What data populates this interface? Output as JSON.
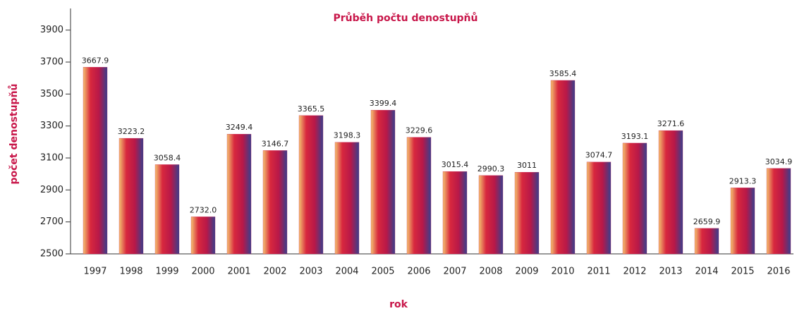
{
  "chart_data": {
    "type": "bar",
    "title": "Průběh počtu denostupňů",
    "x_label": "rok",
    "y_label": "počet denostupňů",
    "categories": [
      "1997",
      "1998",
      "1999",
      "2000",
      "2001",
      "2002",
      "2003",
      "2004",
      "2005",
      "2006",
      "2007",
      "2008",
      "2009",
      "2010",
      "2011",
      "2012",
      "2013",
      "2014",
      "2015",
      "2016"
    ],
    "values": [
      3667.9,
      3223.2,
      3058.4,
      2732,
      3249.4,
      3146.7,
      3365.5,
      3198.3,
      3399.4,
      3229.6,
      3015.4,
      2990.3,
      3011,
      3585.4,
      3074.7,
      3193.1,
      3271.6,
      2659.9,
      2913.3,
      3034.9
    ],
    "value_labels": [
      "3667.9",
      "3223.2",
      "3058.4",
      "2732.0",
      "3249.4",
      "3146.7",
      "3365.5",
      "3198.3",
      "3399.4",
      "3229.6",
      "3015.4",
      "2990.3",
      "3011",
      "3585.4",
      "3074.7",
      "3193.1",
      "3271.6",
      "2659.9",
      "2913.3",
      "3034.9"
    ],
    "color": "#c8174a",
    "ylim": [
      2500,
      4000
    ],
    "yticks": [
      2500,
      2700,
      2900,
      3100,
      3300,
      3500,
      3700,
      3900
    ]
  }
}
